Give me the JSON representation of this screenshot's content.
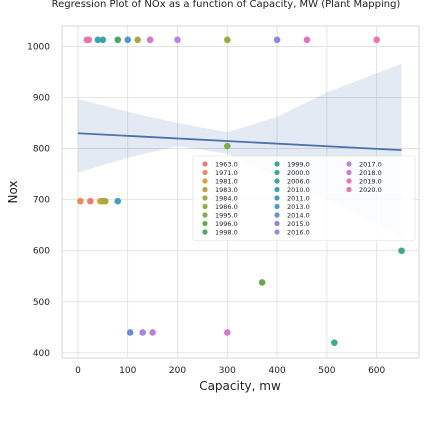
{
  "chart_data": {
    "type": "scatter",
    "title": "Regression Plot of NOx as a function of Capacity, MW (Plant Mapping)",
    "xlabel": "Capacity, mw",
    "ylabel": "Nox",
    "xlim": [
      -32,
      685
    ],
    "ylim": [
      390,
      1040
    ],
    "xticks": [
      0,
      100,
      200,
      300,
      400,
      500,
      600
    ],
    "yticks": [
      400,
      500,
      600,
      700,
      800,
      900,
      1000
    ],
    "grid": true,
    "legend": "center-right",
    "series": [
      {
        "name": "1963.0",
        "color": "#ef7a7a",
        "points": [
          [
            25,
            697
          ]
        ]
      },
      {
        "name": "1971.0",
        "color": "#e98d56",
        "points": [
          [
            5,
            697
          ]
        ]
      },
      {
        "name": "1981.0",
        "color": "#d9a238",
        "points": [
          [
            45,
            697
          ]
        ]
      },
      {
        "name": "1983.0",
        "color": "#b8a43a",
        "points": [
          [
            50,
            697
          ]
        ]
      },
      {
        "name": "1984.0",
        "color": "#a7aa3f",
        "points": [
          [
            55,
            697
          ],
          [
            120,
            1013
          ]
        ]
      },
      {
        "name": "1986.0",
        "color": "#93ac45",
        "points": [
          [
            300,
            1013
          ]
        ]
      },
      {
        "name": "1995.0",
        "color": "#7bae4b",
        "points": [
          [
            300,
            805
          ]
        ]
      },
      {
        "name": "1996.0",
        "color": "#62ab4e",
        "points": [
          [
            370,
            538
          ]
        ]
      },
      {
        "name": "1998.0",
        "color": "#46aa61",
        "points": [
          [
            80,
            1013
          ]
        ]
      },
      {
        "name": "1999.0",
        "color": "#3faa7d",
        "points": [
          [
            650,
            600
          ]
        ]
      },
      {
        "name": "2000.0",
        "color": "#3ea890",
        "points": [
          [
            515,
            420
          ]
        ]
      },
      {
        "name": "2006.0",
        "color": "#3ea49e",
        "points": [
          [
            50,
            1013
          ]
        ]
      },
      {
        "name": "2010.0",
        "color": "#3ca3ad",
        "points": [
          [
            40,
            1013
          ]
        ]
      },
      {
        "name": "2011.0",
        "color": "#3f9fbe",
        "points": [
          [
            80,
            697
          ]
        ]
      },
      {
        "name": "2013.0",
        "color": "#4a9acb",
        "points": [
          [
            100,
            1013
          ]
        ]
      },
      {
        "name": "2014.0",
        "color": "#6a8fd6",
        "points": [
          [
            105,
            440
          ]
        ]
      },
      {
        "name": "2015.0",
        "color": "#8b89dd",
        "points": [
          [
            400,
            1013
          ]
        ]
      },
      {
        "name": "2016.0",
        "color": "#a486e0",
        "points": [
          [
            130,
            440
          ]
        ]
      },
      {
        "name": "2017.0",
        "color": "#bc82dd",
        "points": [
          [
            200,
            1013
          ],
          [
            150,
            440
          ]
        ]
      },
      {
        "name": "2018.0",
        "color": "#d178d2",
        "points": [
          [
            145,
            1013
          ],
          [
            300,
            440
          ]
        ]
      },
      {
        "name": "2019.0",
        "color": "#e271c0",
        "points": [
          [
            460,
            1013
          ],
          [
            18,
            1013
          ]
        ]
      },
      {
        "name": "2020.0",
        "color": "#ec74a6",
        "points": [
          [
            600,
            1013
          ],
          [
            22,
            1013
          ]
        ]
      }
    ],
    "regression": {
      "color": "#4c72b0",
      "line": [
        [
          0,
          830
        ],
        [
          650,
          797
        ]
      ],
      "ci_upper": [
        [
          0,
          897
        ],
        [
          100,
          872
        ],
        [
          200,
          850
        ],
        [
          300,
          832
        ],
        [
          400,
          862
        ],
        [
          500,
          910
        ],
        [
          650,
          966
        ]
      ],
      "ci_lower": [
        [
          0,
          753
        ],
        [
          100,
          782
        ],
        [
          200,
          805
        ],
        [
          300,
          790
        ],
        [
          400,
          745
        ],
        [
          500,
          700
        ],
        [
          650,
          628
        ]
      ]
    }
  }
}
